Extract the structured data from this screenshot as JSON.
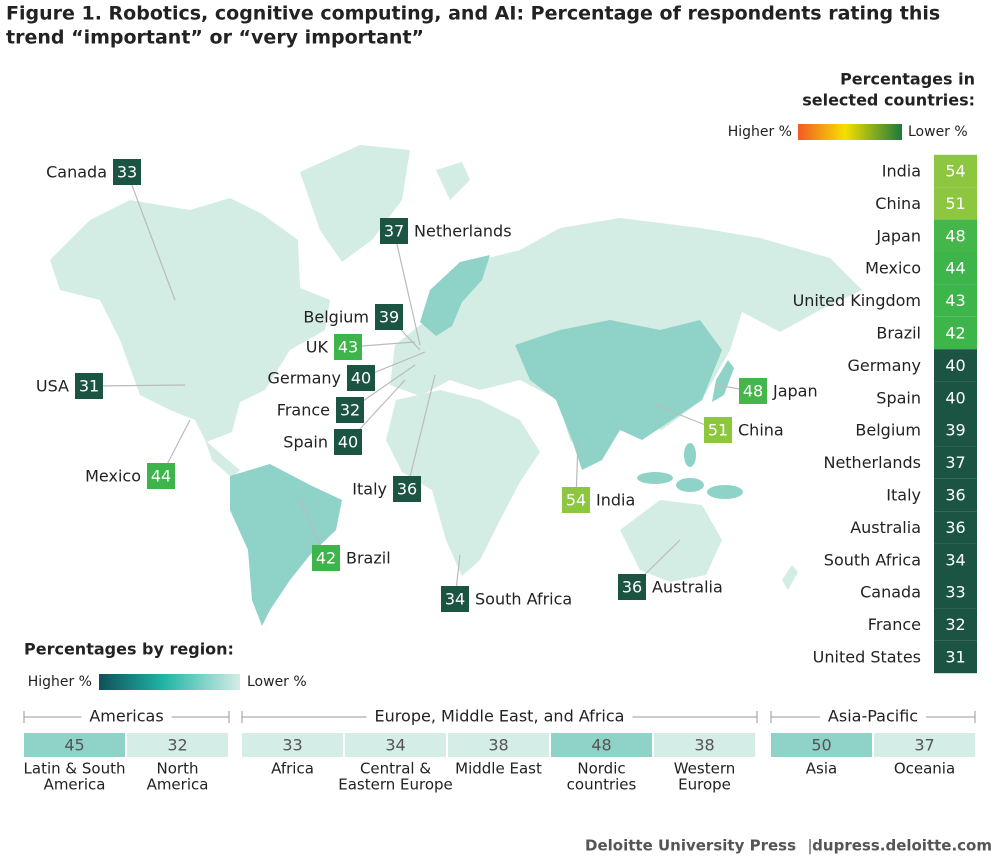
{
  "title": [
    "Figure 1. Robotics, cognitive computing, and AI: Percentage of respondents rating this",
    "trend “important” or “very important”"
  ],
  "country_panel": {
    "heading": [
      "Percentages in",
      "selected countries:"
    ],
    "higher": "Higher %",
    "lower": "Lower %",
    "countries": [
      {
        "name": "India",
        "value": 54,
        "color": "#8dc63f"
      },
      {
        "name": "China",
        "value": 51,
        "color": "#8dc63f"
      },
      {
        "name": "Japan",
        "value": 48,
        "color": "#45b649"
      },
      {
        "name": "Mexico",
        "value": 44,
        "color": "#3db54a"
      },
      {
        "name": "United Kingdom",
        "value": 43,
        "color": "#3db54a"
      },
      {
        "name": "Brazil",
        "value": 42,
        "color": "#3db54a"
      },
      {
        "name": "Germany",
        "value": 40,
        "color": "#1b5443"
      },
      {
        "name": "Spain",
        "value": 40,
        "color": "#1b5443"
      },
      {
        "name": "Belgium",
        "value": 39,
        "color": "#1b5443"
      },
      {
        "name": "Netherlands",
        "value": 37,
        "color": "#1b5443"
      },
      {
        "name": "Italy",
        "value": 36,
        "color": "#1b5443"
      },
      {
        "name": "Australia",
        "value": 36,
        "color": "#1b5443"
      },
      {
        "name": "South Africa",
        "value": 34,
        "color": "#1b5443"
      },
      {
        "name": "Canada",
        "value": 33,
        "color": "#1b5443"
      },
      {
        "name": "France",
        "value": 32,
        "color": "#1b5443"
      },
      {
        "name": "United States",
        "value": 31,
        "color": "#1b5443"
      }
    ]
  },
  "map_labels": [
    {
      "name": "Canada",
      "value": 33,
      "color": "#1b5443"
    },
    {
      "name": "USA",
      "value": 31,
      "color": "#1b5443"
    },
    {
      "name": "Mexico",
      "value": 44,
      "color": "#3db54a"
    },
    {
      "name": "Netherlands",
      "value": 37,
      "color": "#1b5443"
    },
    {
      "name": "Belgium",
      "value": 39,
      "color": "#1b5443"
    },
    {
      "name": "UK",
      "value": 43,
      "color": "#3db54a"
    },
    {
      "name": "Germany",
      "value": 40,
      "color": "#1b5443"
    },
    {
      "name": "France",
      "value": 32,
      "color": "#1b5443"
    },
    {
      "name": "Spain",
      "value": 40,
      "color": "#1b5443"
    },
    {
      "name": "Italy",
      "value": 36,
      "color": "#1b5443"
    },
    {
      "name": "Brazil",
      "value": 42,
      "color": "#3db54a"
    },
    {
      "name": "South Africa",
      "value": 34,
      "color": "#1b5443"
    },
    {
      "name": "India",
      "value": 54,
      "color": "#8dc63f"
    },
    {
      "name": "China",
      "value": 51,
      "color": "#8dc63f"
    },
    {
      "name": "Japan",
      "value": 48,
      "color": "#45b649"
    },
    {
      "name": "Australia",
      "value": 36,
      "color": "#1b5443"
    }
  ],
  "region_panel": {
    "heading": "Percentages by region:",
    "higher": "Higher %",
    "lower": "Lower %",
    "groups": [
      {
        "name": "Americas",
        "regions": [
          {
            "name": [
              "Latin & South",
              "America"
            ],
            "value": 45,
            "color": "#8fd2c7"
          },
          {
            "name": [
              "North",
              "America"
            ],
            "value": 32,
            "color": "#d4ede6"
          }
        ]
      },
      {
        "name": "Europe, Middle East, and Africa",
        "regions": [
          {
            "name": [
              "Africa"
            ],
            "value": 33,
            "color": "#d4ede6"
          },
          {
            "name": [
              "Central &",
              "Eastern Europe"
            ],
            "value": 34,
            "color": "#d4ede6"
          },
          {
            "name": [
              "Middle East"
            ],
            "value": 38,
            "color": "#d4ede6"
          },
          {
            "name": [
              "Nordic",
              "countries"
            ],
            "value": 48,
            "color": "#8fd2c7"
          },
          {
            "name": [
              "Western",
              "Europe"
            ],
            "value": 38,
            "color": "#d4ede6"
          }
        ]
      },
      {
        "name": "Asia-Pacific",
        "regions": [
          {
            "name": [
              "Asia"
            ],
            "value": 50,
            "color": "#8fd2c7"
          },
          {
            "name": [
              "Oceania"
            ],
            "value": 37,
            "color": "#d4ede6"
          }
        ]
      }
    ]
  },
  "footer": {
    "source": "Deloitte University Press",
    "separator": "|",
    "url": "dupress.deloitte.com"
  }
}
